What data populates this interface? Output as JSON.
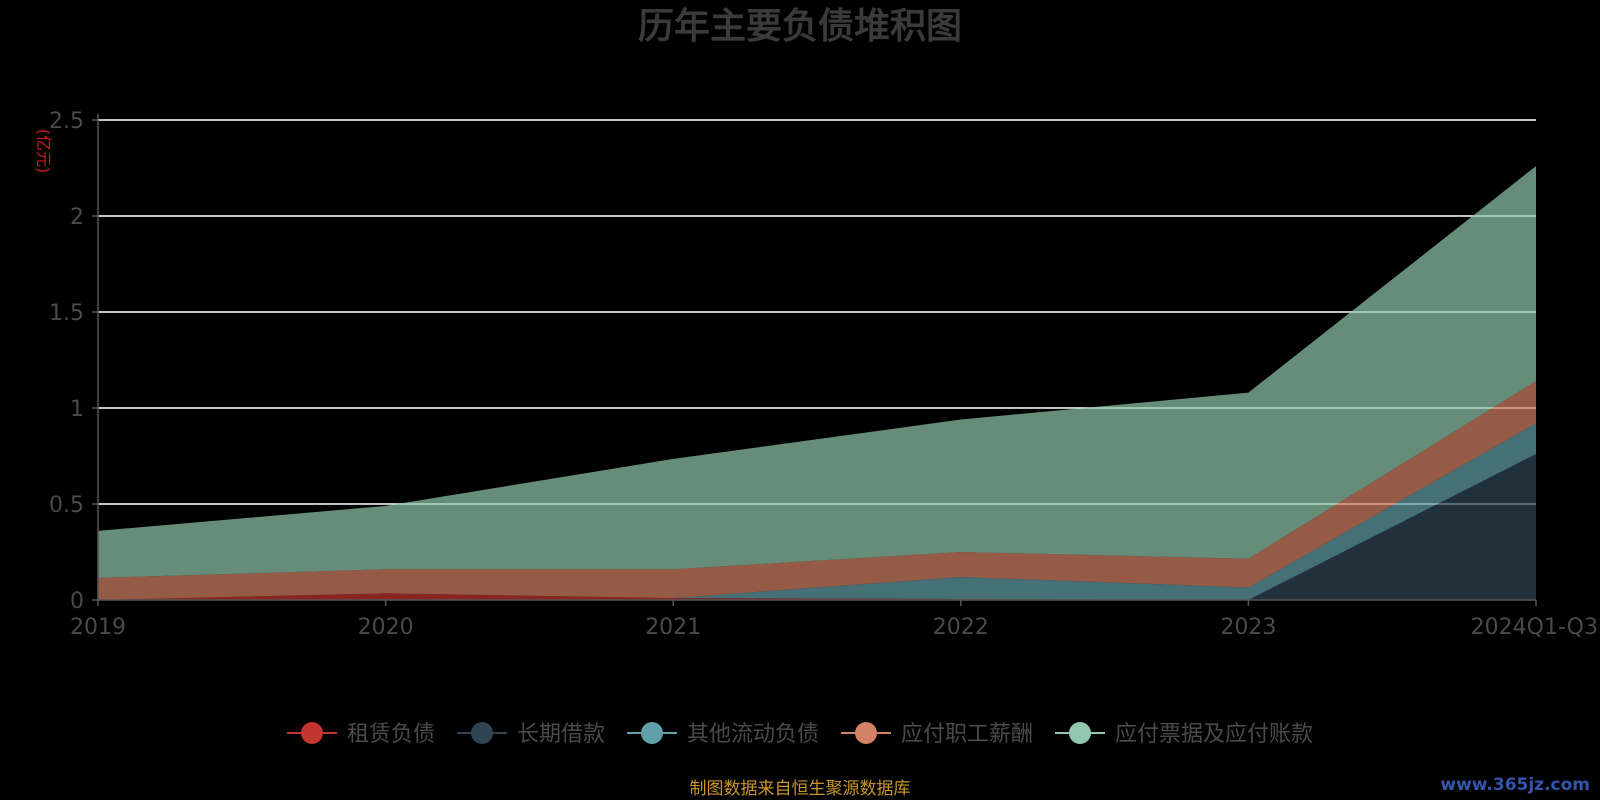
{
  "chart_data": {
    "type": "area",
    "stacked": true,
    "title": "历年主要负债堆积图",
    "unit_label": "(亿元)",
    "categories": [
      "2019",
      "2020",
      "2021",
      "2022",
      "2023",
      "2024Q1-Q3"
    ],
    "ylim": [
      0,
      2.5
    ],
    "yticks": [
      0,
      0.5,
      1,
      1.5,
      2,
      2.5
    ],
    "grid": true,
    "legend_position": "bottom",
    "series": [
      {
        "name": "租赁负债",
        "color": "#c23531",
        "values": [
          0,
          0.035,
          0.01,
          0.005,
          0,
          0
        ]
      },
      {
        "name": "长期借款",
        "color": "#2f4554",
        "values": [
          0,
          0,
          0,
          0,
          0,
          0.76
        ]
      },
      {
        "name": "其他流动负债",
        "color": "#61a0a8",
        "values": [
          0,
          0,
          0,
          0.115,
          0.065,
          0.16
        ]
      },
      {
        "name": "应付职工薪酬",
        "color": "#d48265",
        "values": [
          0.115,
          0.125,
          0.15,
          0.13,
          0.15,
          0.22
        ]
      },
      {
        "name": "应付票据及应付账款",
        "color": "#91c7ae",
        "values": [
          0.245,
          0.33,
          0.575,
          0.69,
          0.865,
          1.12
        ]
      }
    ]
  },
  "source_note": "制图数据来自恒生聚源数据库",
  "watermark": "www.365jz.com"
}
